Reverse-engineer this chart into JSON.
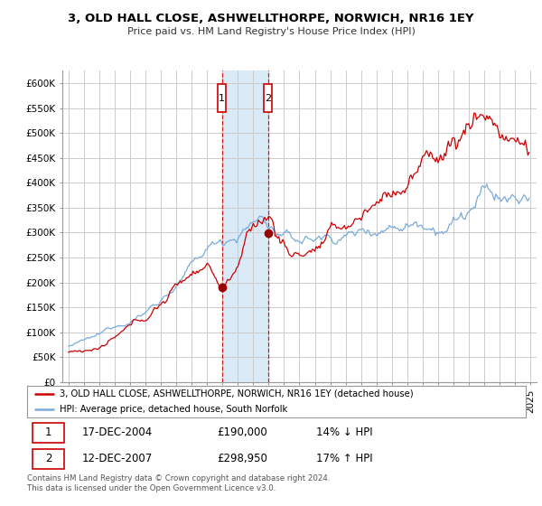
{
  "title": "3, OLD HALL CLOSE, ASHWELLTHORPE, NORWICH, NR16 1EY",
  "subtitle": "Price paid vs. HM Land Registry's House Price Index (HPI)",
  "ylabel_ticks": [
    "£0",
    "£50K",
    "£100K",
    "£150K",
    "£200K",
    "£250K",
    "£300K",
    "£350K",
    "£400K",
    "£450K",
    "£500K",
    "£550K",
    "£600K"
  ],
  "ytick_values": [
    0,
    50000,
    100000,
    150000,
    200000,
    250000,
    300000,
    350000,
    400000,
    450000,
    500000,
    550000,
    600000
  ],
  "ylim": [
    0,
    625000
  ],
  "xlim_start": 1994.6,
  "xlim_end": 2025.4,
  "legend_line1": "3, OLD HALL CLOSE, ASHWELLTHORPE, NORWICH, NR16 1EY (detached house)",
  "legend_line2": "HPI: Average price, detached house, South Norfolk",
  "transaction1_date": "17-DEC-2004",
  "transaction1_price": "£190,000",
  "transaction1_hpi": "14% ↓ HPI",
  "transaction2_date": "12-DEC-2007",
  "transaction2_price": "£298,950",
  "transaction2_hpi": "17% ↑ HPI",
  "footnote": "Contains HM Land Registry data © Crown copyright and database right 2024.\nThis data is licensed under the Open Government Licence v3.0.",
  "hpi_color": "#7aabdb",
  "price_color": "#cc0000",
  "marker_color": "#990000",
  "highlight_color": "#daeaf7",
  "vline_color": "#cc0000",
  "background_color": "#ffffff",
  "grid_color": "#cccccc",
  "box_color": "#cc0000"
}
